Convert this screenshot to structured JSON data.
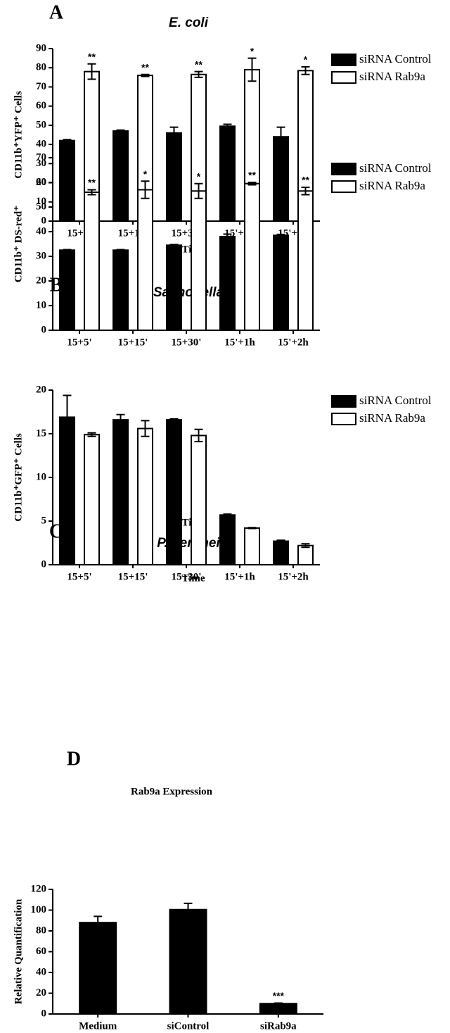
{
  "chart_data": [
    {
      "type": "bar",
      "panel": "A",
      "title": "E. coli",
      "ylabel": "CD11b⁺YFP⁺ Cells",
      "xlabel": "Time",
      "categories": [
        "15+5'",
        "15+15'",
        "15+30'",
        "15'+1h",
        "15'+2h"
      ],
      "ylim": [
        0,
        90
      ],
      "yticks": [
        0,
        10,
        20,
        30,
        40,
        50,
        60,
        70,
        80,
        90
      ],
      "series": [
        {
          "name": "siRNA Control",
          "color": "#000000",
          "values": [
            42,
            47,
            46,
            49.5,
            44
          ],
          "errors": [
            0.5,
            0.5,
            3,
            1,
            5
          ]
        },
        {
          "name": "siRNA Rab9a",
          "color": "#ffffff",
          "values": [
            78,
            76,
            76.5,
            79,
            78.5
          ],
          "errors": [
            4,
            0.5,
            1.5,
            6,
            2
          ],
          "annotations": [
            "**",
            "**",
            "**",
            "*",
            "*"
          ]
        }
      ]
    },
    {
      "type": "bar",
      "panel": "B",
      "title": "Salmonella",
      "ylabel": "CD11b⁺ DS-red⁺",
      "xlabel": "Time",
      "categories": [
        "15+5'",
        "15+15'",
        "15+30'",
        "15'+1h",
        "15'+2h"
      ],
      "ylim": [
        0,
        70
      ],
      "yticks": [
        0,
        10,
        20,
        30,
        40,
        50,
        60,
        70
      ],
      "series": [
        {
          "name": "siRNA Control",
          "color": "#000000",
          "values": [
            32.5,
            32.5,
            34.5,
            38,
            38.5
          ],
          "errors": [
            0.2,
            0.2,
            0.3,
            1,
            0.4
          ]
        },
        {
          "name": "siRNA Rab9a",
          "color": "#ffffff",
          "values": [
            56,
            57,
            56.5,
            59.5,
            56.5
          ],
          "errors": [
            1,
            3.5,
            3,
            0.5,
            1.5
          ],
          "annotations": [
            "**",
            "*",
            "*",
            "**",
            "**"
          ]
        }
      ]
    },
    {
      "type": "bar",
      "panel": "C",
      "title": "P. berghei",
      "ylabel": "CD11b⁺GFP⁺ Cells",
      "xlabel": "Time",
      "categories": [
        "15+5'",
        "15+15'",
        "15+30'",
        "15'+1h",
        "15'+2h"
      ],
      "ylim": [
        0,
        20
      ],
      "yticks": [
        0,
        5,
        10,
        15,
        20
      ],
      "series": [
        {
          "name": "siRNA Control",
          "color": "#000000",
          "values": [
            16.9,
            16.6,
            16.6,
            5.7,
            2.7
          ],
          "errors": [
            2.5,
            0.6,
            0.1,
            0.1,
            0.1
          ]
        },
        {
          "name": "siRNA Rab9a",
          "color": "#ffffff",
          "values": [
            14.9,
            15.6,
            14.8,
            4.2,
            2.2
          ],
          "errors": [
            0.2,
            0.9,
            0.7,
            0.05,
            0.2
          ]
        }
      ]
    },
    {
      "type": "bar",
      "panel": "D",
      "title": "Rab9a Expression",
      "ylabel": "Relative  Quantification",
      "categories": [
        "Medium",
        "siControl",
        "siRab9a"
      ],
      "ylim": [
        0,
        120
      ],
      "yticks": [
        0,
        20,
        40,
        60,
        80,
        100,
        120
      ],
      "color": "#000000",
      "values": [
        88,
        100.5,
        10
      ],
      "errors": [
        6,
        6,
        0.5
      ],
      "annotations": [
        null,
        null,
        "***"
      ]
    }
  ]
}
